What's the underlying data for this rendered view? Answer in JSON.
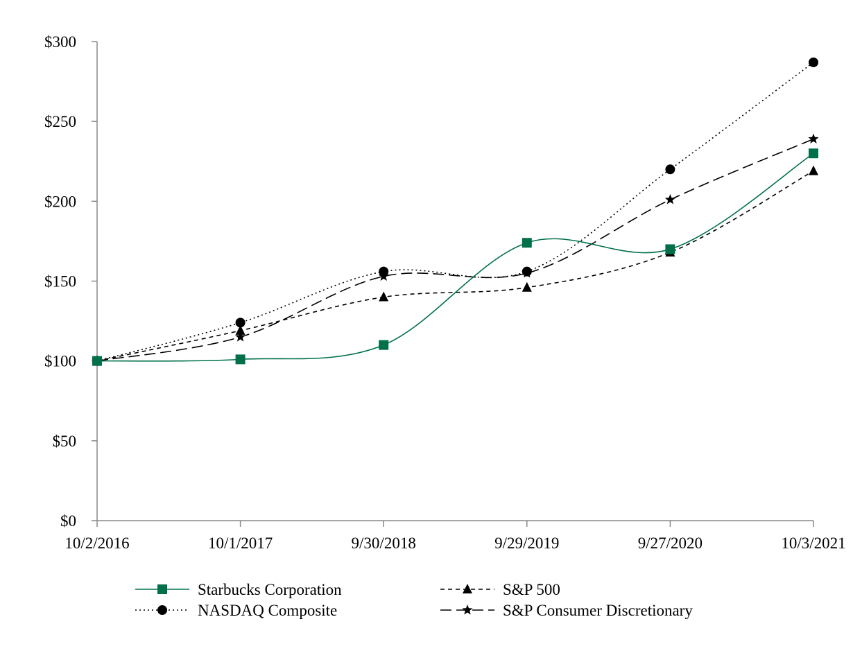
{
  "chart_data": {
    "type": "line",
    "title": "",
    "xlabel": "",
    "ylabel": "",
    "categories": [
      "10/2/2016",
      "10/1/2017",
      "9/30/2018",
      "9/29/2019",
      "9/27/2020",
      "10/3/2021"
    ],
    "ylim": [
      0,
      300
    ],
    "yticks": [
      0,
      50,
      100,
      150,
      200,
      250,
      300
    ],
    "ytick_labels": [
      "$0",
      "$50",
      "$100",
      "$150",
      "$200",
      "$250",
      "$300"
    ],
    "grid": false,
    "legend_position": "bottom",
    "series": [
      {
        "name": "Starbucks Corporation",
        "values": [
          100,
          101,
          110,
          174,
          170,
          230
        ],
        "color": "#00704A",
        "line_style": "solid",
        "marker": "square"
      },
      {
        "name": "S&P 500",
        "values": [
          100,
          119,
          140,
          146,
          168,
          219
        ],
        "color": "#000000",
        "line_style": "short-dash",
        "marker": "triangle"
      },
      {
        "name": "NASDAQ Composite",
        "values": [
          100,
          124,
          156,
          156,
          220,
          287
        ],
        "color": "#000000",
        "line_style": "dotted",
        "marker": "circle"
      },
      {
        "name": "S&P Consumer Discretionary",
        "values": [
          100,
          115,
          153,
          155,
          201,
          239
        ],
        "color": "#000000",
        "line_style": "long-dash",
        "marker": "star"
      }
    ]
  }
}
